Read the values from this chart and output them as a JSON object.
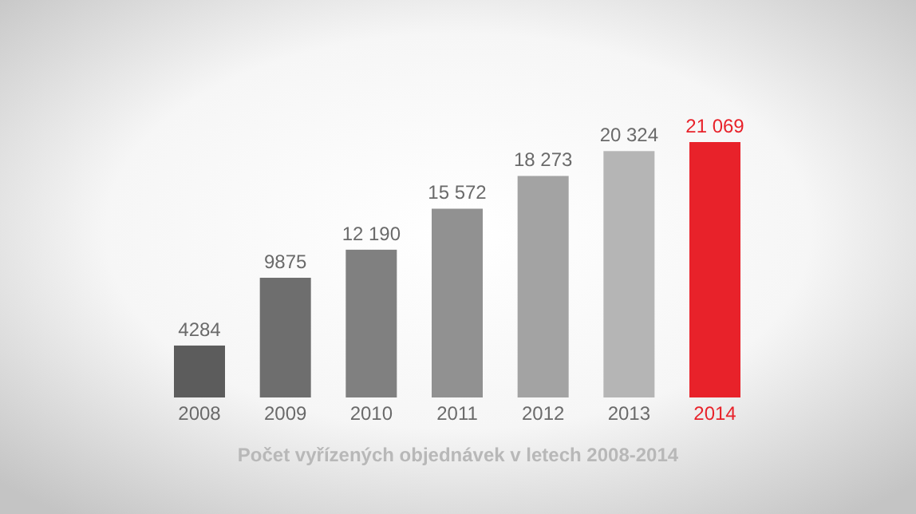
{
  "chart_data": {
    "type": "bar",
    "title": "Počet vyřízených objednávek v letech 2008-2014",
    "categories": [
      "2008",
      "2009",
      "2010",
      "2011",
      "2012",
      "2013",
      "2014"
    ],
    "values": [
      4284,
      9875,
      12190,
      15572,
      18273,
      20324,
      21069
    ],
    "value_labels": [
      "4284",
      "9875",
      "12 190",
      "15 572",
      "18 273",
      "20 324",
      "21 069"
    ],
    "colors": [
      "#5c5c5c",
      "#6e6e6e",
      "#808080",
      "#919191",
      "#a3a3a3",
      "#b5b5b5",
      "#e8222a"
    ]
  }
}
